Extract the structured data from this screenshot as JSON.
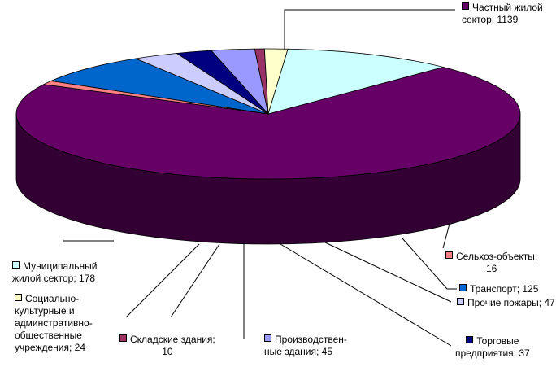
{
  "chart_data": {
    "type": "pie",
    "style": "3d-exploded-none",
    "series": [
      {
        "label": "Частный жилой\nсектор; 1139",
        "category": "Частный жилой сектор",
        "value": 1139,
        "color": "#660066"
      },
      {
        "label": "Сельхоз-объекты;\n16",
        "category": "Сельхоз-объекты",
        "value": 16,
        "color": "#FF8080"
      },
      {
        "label": "Транспорт; 125",
        "category": "Транспорт",
        "value": 125,
        "color": "#0066CC"
      },
      {
        "label": "Прочие пожары; 47",
        "category": "Прочие пожары",
        "value": 47,
        "color": "#CCCCFF"
      },
      {
        "label": "Торговые\nпредприятия; 37",
        "category": "Торговые предприятия",
        "value": 37,
        "color": "#000080"
      },
      {
        "label": "Производствен-\nные здания; 45",
        "category": "Производственные здания",
        "value": 45,
        "color": "#9999FF"
      },
      {
        "label": "Складские здания;\n10",
        "category": "Складские здания",
        "value": 10,
        "color": "#993366"
      },
      {
        "label": "Социально-\nкультурные и\nадминстративно-\nобщественные\nучреждения; 24",
        "category": "Социально-культурные и админстративно-общественные учреждения",
        "value": 24,
        "color": "#FFFFCC"
      },
      {
        "label": "Муниципальный\nжилой сектор; 178",
        "category": "Муниципальный жилой сектор",
        "value": 178,
        "color": "#CCFFFF"
      }
    ]
  }
}
